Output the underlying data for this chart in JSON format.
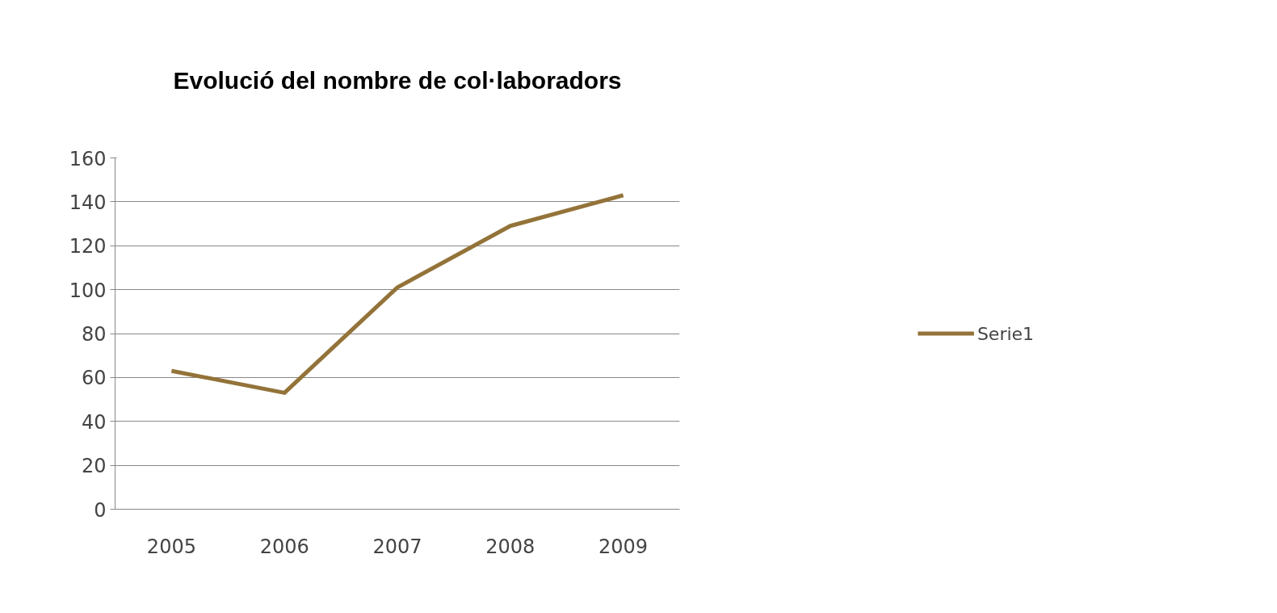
{
  "chart_data": {
    "type": "line",
    "title": "Evolució del nombre de col·laboradors",
    "categories": [
      "2005",
      "2006",
      "2007",
      "2008",
      "2009"
    ],
    "series": [
      {
        "name": "Serie1",
        "color": "#937339",
        "values": [
          63,
          53,
          101,
          129,
          143
        ]
      }
    ],
    "ylim": [
      0,
      160
    ],
    "yticks": [
      0,
      20,
      40,
      60,
      80,
      100,
      120,
      140,
      160
    ],
    "grid": "y",
    "legend": "right",
    "marker": "none",
    "line_style": "solid"
  }
}
